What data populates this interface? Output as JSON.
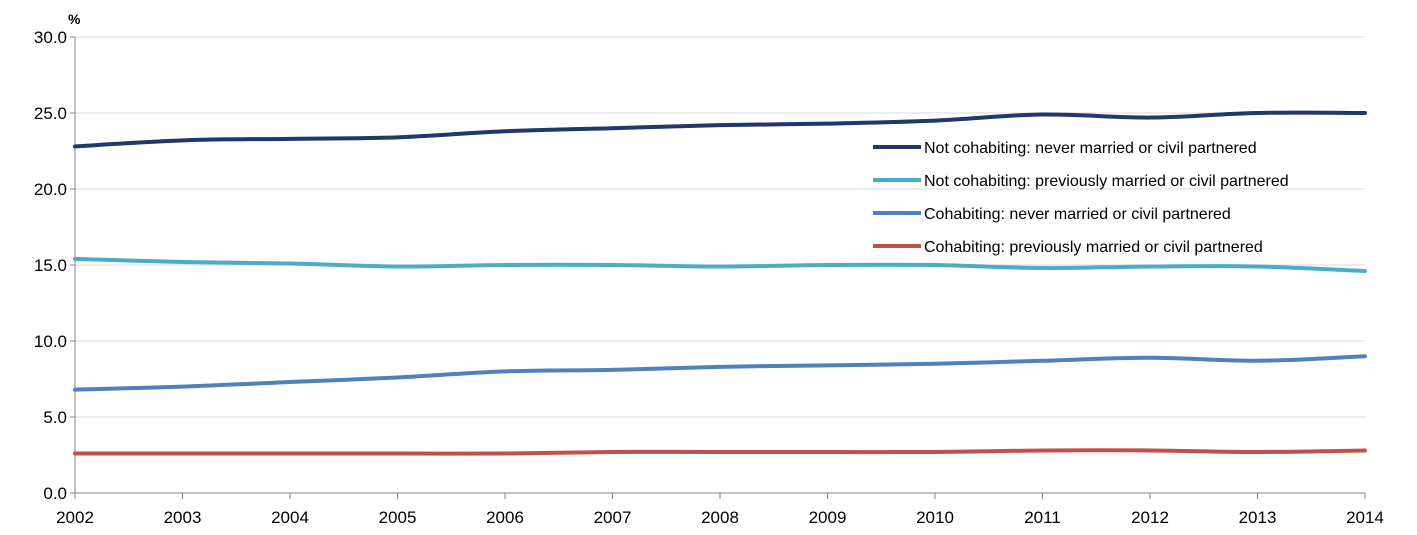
{
  "chart_data": {
    "type": "line",
    "ylabel": "%",
    "x": [
      "2002",
      "2003",
      "2004",
      "2005",
      "2006",
      "2007",
      "2008",
      "2009",
      "2010",
      "2011",
      "2012",
      "2013",
      "2014"
    ],
    "ylim": [
      0,
      30
    ],
    "yticks": [
      "0.0",
      "5.0",
      "10.0",
      "15.0",
      "20.0",
      "25.0",
      "30.0"
    ],
    "grid": "horizontal",
    "legend_position": "right",
    "series": [
      {
        "name": "Not cohabiting: never married or civil partnered",
        "color": "#1f3a68",
        "values": [
          22.8,
          23.2,
          23.3,
          23.4,
          23.8,
          24.0,
          24.2,
          24.3,
          24.5,
          24.9,
          24.7,
          25.0,
          25.0
        ]
      },
      {
        "name": "Not cohabiting: previously married or civil partnered",
        "color": "#4bacc6",
        "values": [
          15.4,
          15.2,
          15.1,
          14.9,
          15.0,
          15.0,
          14.9,
          15.0,
          15.0,
          14.8,
          14.9,
          14.9,
          14.6
        ]
      },
      {
        "name": "Cohabiting: never married or civil partnered",
        "color": "#4f81bd",
        "values": [
          6.8,
          7.0,
          7.3,
          7.6,
          8.0,
          8.1,
          8.3,
          8.4,
          8.5,
          8.7,
          8.9,
          8.7,
          9.0
        ]
      },
      {
        "name": "Cohabiting: previously married or civil partnered",
        "color": "#c0504d",
        "values": [
          2.6,
          2.6,
          2.6,
          2.6,
          2.6,
          2.7,
          2.7,
          2.7,
          2.7,
          2.8,
          2.8,
          2.7,
          2.8
        ]
      }
    ]
  }
}
